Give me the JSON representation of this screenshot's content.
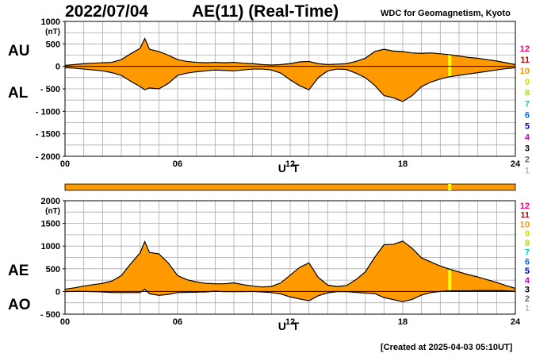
{
  "header": {
    "date": "2022/07/04",
    "title": "AE(11) (Real-Time)",
    "source": "WDC for Geomagnetism, Kyoto",
    "created": "[Created at 2025-04-03 05:10UT]"
  },
  "colors": {
    "fill": "#ff9900",
    "highlight": "#ffff00",
    "line": "#000000",
    "grid": "#aaaaaa"
  },
  "station_index": {
    "labels": [
      "12",
      "11",
      "10",
      "9",
      "8",
      "7",
      "6",
      "5",
      "4",
      "3",
      "2",
      "1"
    ],
    "colors": [
      "#ff0080",
      "#cc0000",
      "#ff9900",
      "#dddd00",
      "#99ee00",
      "#00cccc",
      "#0066ff",
      "#0000cc",
      "#cc00cc",
      "#000000",
      "#666666",
      "#bbbbbb"
    ]
  },
  "status_bar": {
    "color": "#ff9900",
    "highlight_color": "#ffff00",
    "highlight_hour": 20.5
  },
  "chart_data": [
    {
      "type": "area",
      "title": "",
      "xlabel": "U T",
      "ylabel": "(nT)",
      "xlim": [
        0,
        24
      ],
      "ylim": [
        -2000,
        1000
      ],
      "x_ticks": [
        "00",
        "06",
        "12",
        "18",
        "24"
      ],
      "y_ticks": [
        "1000",
        "500",
        "0",
        "- 500",
        "- 1000",
        "- 1500",
        "- 2000"
      ],
      "y_tick_values": [
        1000,
        500,
        0,
        -500,
        -1000,
        -1500,
        -2000
      ],
      "series_labels": [
        "AU",
        "AL"
      ],
      "highlight_hour": 20.5,
      "grid": true,
      "x": [
        0,
        0.5,
        1,
        1.5,
        2,
        2.5,
        3,
        3.5,
        4,
        4.25,
        4.5,
        5,
        5.5,
        6,
        6.5,
        7,
        7.5,
        8,
        8.5,
        9,
        9.5,
        10,
        10.5,
        11,
        11.5,
        12,
        12.5,
        13,
        13.5,
        14,
        14.5,
        15,
        15.5,
        16,
        16.5,
        17,
        17.5,
        18,
        18.5,
        19,
        19.5,
        20,
        20.5,
        21,
        21.5,
        22,
        22.5,
        23,
        23.5,
        24
      ],
      "series": [
        {
          "name": "AU",
          "values": [
            20,
            40,
            60,
            70,
            80,
            90,
            150,
            280,
            400,
            620,
            380,
            330,
            250,
            150,
            110,
            90,
            80,
            90,
            80,
            90,
            70,
            60,
            40,
            30,
            40,
            60,
            100,
            110,
            60,
            40,
            50,
            60,
            110,
            180,
            330,
            380,
            340,
            330,
            300,
            290,
            300,
            280,
            260,
            230,
            200,
            180,
            150,
            120,
            80,
            40
          ]
        },
        {
          "name": "AL",
          "values": [
            -30,
            -40,
            -60,
            -80,
            -100,
            -140,
            -200,
            -330,
            -450,
            -520,
            -480,
            -500,
            -380,
            -200,
            -150,
            -120,
            -100,
            -80,
            -90,
            -100,
            -80,
            -60,
            -60,
            -80,
            -150,
            -300,
            -430,
            -520,
            -250,
            -100,
            -60,
            -70,
            -150,
            -250,
            -420,
            -650,
            -700,
            -780,
            -650,
            -450,
            -350,
            -280,
            -230,
            -200,
            -170,
            -140,
            -110,
            -80,
            -50,
            -30
          ]
        }
      ]
    },
    {
      "type": "area",
      "title": "",
      "xlabel": "U T",
      "ylabel": "(nT)",
      "xlim": [
        0,
        24
      ],
      "ylim": [
        -500,
        2000
      ],
      "x_ticks": [
        "00",
        "06",
        "12",
        "18",
        "24"
      ],
      "y_ticks": [
        "2000",
        "1500",
        "1000",
        "500",
        "0",
        "- 500"
      ],
      "y_tick_values": [
        2000,
        1500,
        1000,
        500,
        0,
        -500
      ],
      "series_labels": [
        "AE",
        "AO"
      ],
      "highlight_hour": 20.5,
      "grid": true,
      "x": [
        0,
        0.5,
        1,
        1.5,
        2,
        2.5,
        3,
        3.5,
        4,
        4.25,
        4.5,
        5,
        5.5,
        6,
        6.5,
        7,
        7.5,
        8,
        8.5,
        9,
        9.5,
        10,
        10.5,
        11,
        11.5,
        12,
        12.5,
        13,
        13.5,
        14,
        14.5,
        15,
        15.5,
        16,
        16.5,
        17,
        17.5,
        18,
        18.5,
        19,
        19.5,
        20,
        20.5,
        21,
        21.5,
        22,
        22.5,
        23,
        23.5,
        24
      ],
      "series": [
        {
          "name": "AE",
          "values": [
            50,
            80,
            120,
            150,
            180,
            230,
            350,
            610,
            850,
            1100,
            860,
            830,
            630,
            350,
            260,
            210,
            180,
            170,
            170,
            190,
            150,
            120,
            100,
            110,
            190,
            360,
            530,
            630,
            310,
            140,
            110,
            130,
            260,
            430,
            750,
            1030,
            1040,
            1110,
            950,
            740,
            650,
            560,
            490,
            430,
            370,
            320,
            260,
            200,
            130,
            70
          ]
        },
        {
          "name": "AO",
          "values": [
            -5,
            0,
            0,
            -5,
            -10,
            -25,
            -25,
            -25,
            -25,
            50,
            -50,
            -85,
            -65,
            -25,
            -20,
            -15,
            -10,
            5,
            -5,
            -5,
            -5,
            0,
            -10,
            -25,
            -55,
            -120,
            -165,
            -205,
            -95,
            -30,
            -5,
            -5,
            -20,
            -35,
            -45,
            -135,
            -180,
            -225,
            -175,
            -80,
            -25,
            0,
            15,
            15,
            15,
            20,
            20,
            20,
            15,
            5
          ]
        }
      ]
    }
  ]
}
